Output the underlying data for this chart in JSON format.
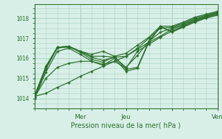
{
  "title": "",
  "xlabel": "Pression niveau de la mer( hPa )",
  "ylabel": "",
  "bg_color": "#d8efe8",
  "grid_color": "#aad0c0",
  "line_color": "#2a6e2a",
  "marker_color": "#2a6e2a",
  "yticks": [
    1014,
    1015,
    1016,
    1017,
    1018
  ],
  "ylim": [
    1013.5,
    1018.7
  ],
  "xlim": [
    0,
    96
  ],
  "xtick_positions": [
    24,
    48,
    72,
    96
  ],
  "xtick_labels": [
    "Mer",
    "Jeu",
    "",
    "Ven"
  ],
  "series": [
    [
      0,
      1014.1,
      6,
      1014.25,
      12,
      1014.55,
      18,
      1014.8,
      24,
      1015.1,
      30,
      1015.35,
      36,
      1015.6,
      42,
      1015.85,
      48,
      1016.1,
      54,
      1016.45,
      60,
      1016.8,
      66,
      1017.1,
      72,
      1017.45,
      78,
      1017.65,
      84,
      1017.9,
      90,
      1018.1,
      96,
      1018.3
    ],
    [
      0,
      1014.05,
      6,
      1015.0,
      12,
      1015.55,
      18,
      1015.75,
      24,
      1015.85,
      30,
      1015.85,
      36,
      1015.7,
      42,
      1015.85,
      48,
      1015.5,
      54,
      1016.35,
      60,
      1016.7,
      66,
      1017.05,
      72,
      1017.35,
      78,
      1017.6,
      84,
      1017.85,
      90,
      1018.05,
      96,
      1018.2
    ],
    [
      0,
      1014.0,
      6,
      1015.3,
      12,
      1016.35,
      18,
      1016.5,
      24,
      1016.2,
      30,
      1015.85,
      36,
      1015.65,
      42,
      1016.0,
      48,
      1015.35,
      54,
      1015.5,
      60,
      1016.8,
      66,
      1017.6,
      72,
      1017.3,
      78,
      1017.55,
      84,
      1017.8,
      90,
      1018.0,
      96,
      1018.15
    ],
    [
      0,
      1014.0,
      6,
      1015.45,
      12,
      1016.55,
      18,
      1016.6,
      24,
      1016.3,
      30,
      1015.95,
      36,
      1015.8,
      42,
      1016.1,
      48,
      1015.45,
      54,
      1015.55,
      60,
      1016.85,
      66,
      1017.55,
      72,
      1017.35,
      78,
      1017.6,
      84,
      1017.85,
      90,
      1018.05,
      96,
      1018.2
    ],
    [
      0,
      1014.05,
      6,
      1015.55,
      12,
      1016.55,
      18,
      1016.6,
      24,
      1016.35,
      30,
      1016.05,
      36,
      1015.9,
      42,
      1016.05,
      48,
      1015.55,
      54,
      1016.15,
      60,
      1016.85,
      66,
      1017.3,
      72,
      1017.5,
      78,
      1017.7,
      84,
      1017.95,
      90,
      1018.1,
      96,
      1018.25
    ],
    [
      0,
      1014.1,
      6,
      1015.6,
      12,
      1016.55,
      18,
      1016.55,
      24,
      1016.35,
      30,
      1016.1,
      36,
      1016.1,
      42,
      1016.05,
      48,
      1016.1,
      54,
      1016.5,
      60,
      1017.0,
      66,
      1017.5,
      72,
      1017.55,
      78,
      1017.75,
      84,
      1018.0,
      90,
      1018.15,
      96,
      1018.3
    ],
    [
      0,
      1014.15,
      6,
      1015.5,
      12,
      1016.5,
      18,
      1016.6,
      24,
      1016.35,
      30,
      1016.2,
      36,
      1016.35,
      42,
      1016.1,
      48,
      1016.25,
      54,
      1016.65,
      60,
      1017.05,
      66,
      1017.6,
      72,
      1017.6,
      78,
      1017.8,
      84,
      1018.05,
      90,
      1018.2,
      96,
      1018.35
    ]
  ]
}
